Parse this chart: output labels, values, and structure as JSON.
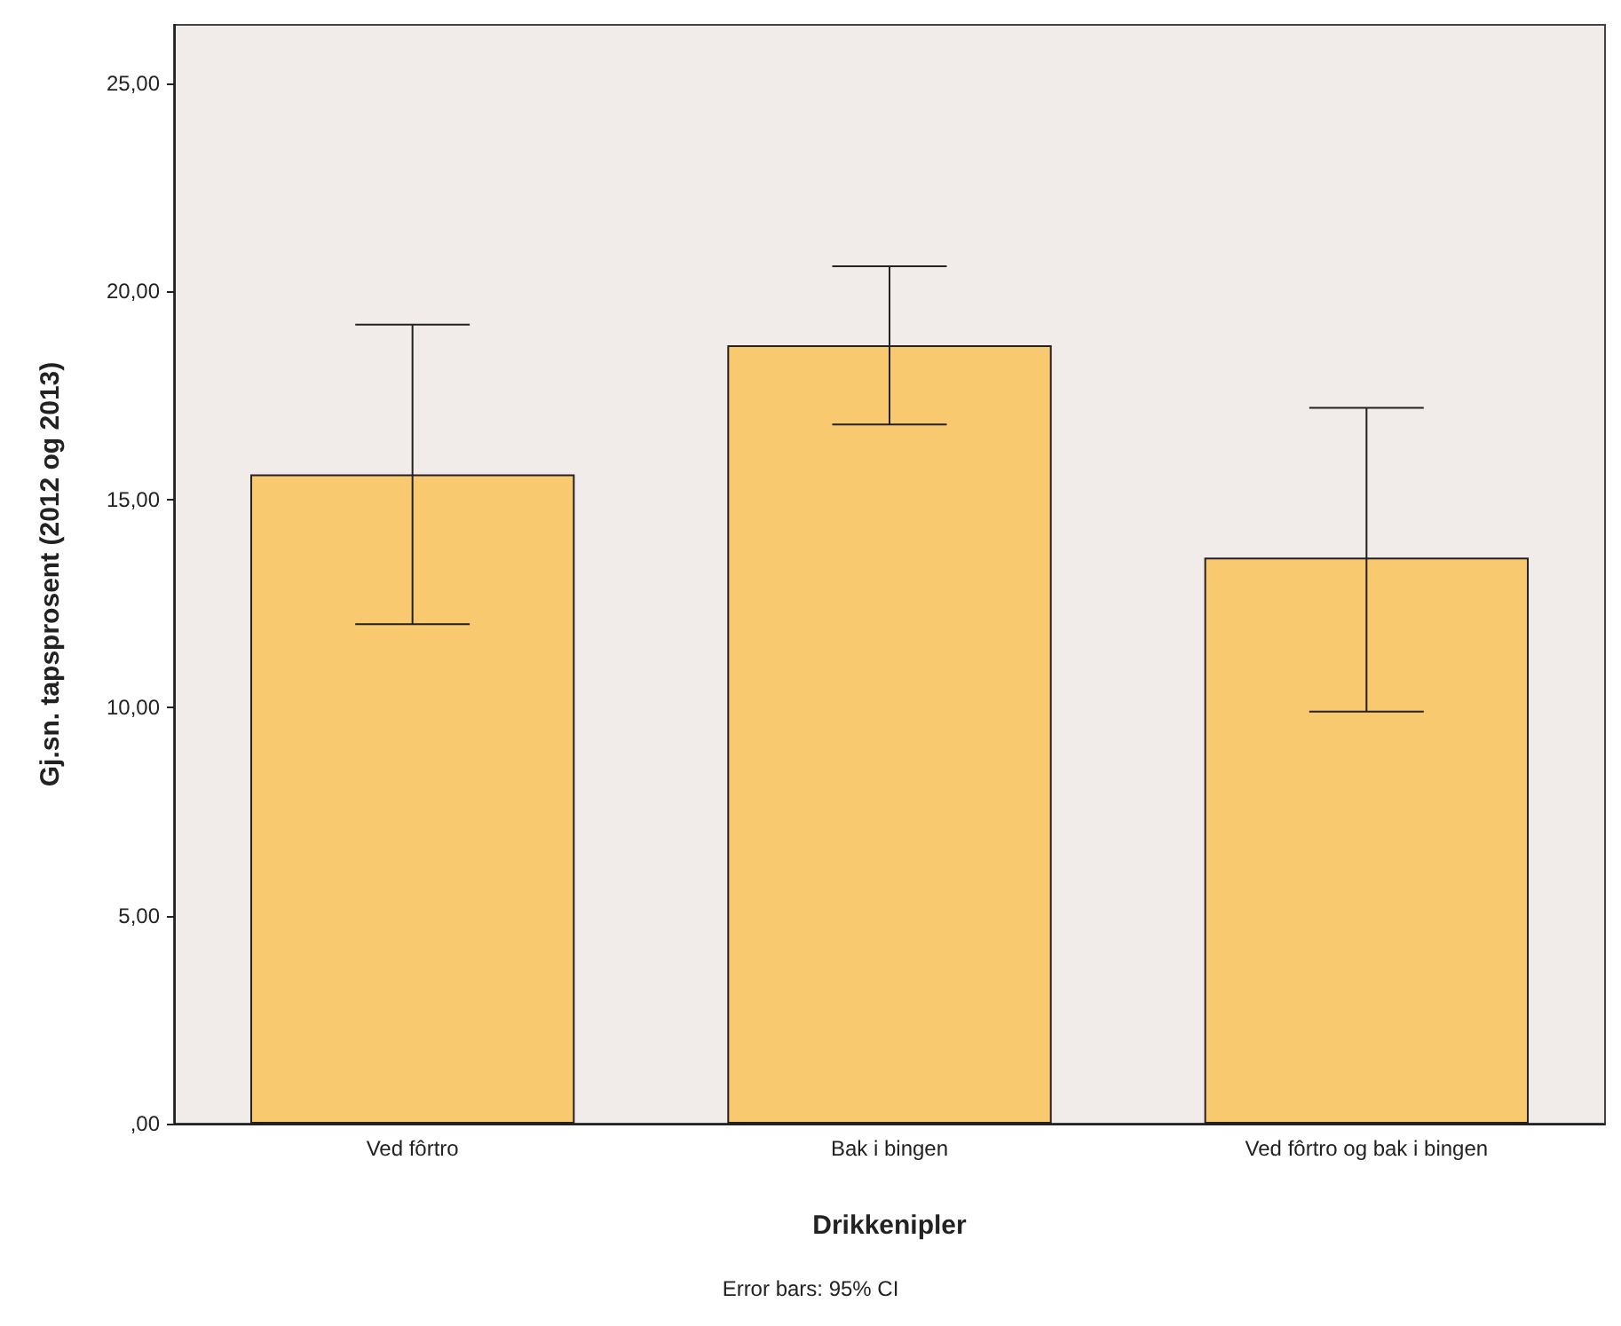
{
  "chart_data": {
    "type": "bar",
    "xlabel": "Drikkenipler",
    "ylabel": "Gj.sn. tapsprosent (2012 og 2013)",
    "categories": [
      "Ved fôrtro",
      "Bak i bingen",
      "Ved fôrtro og bak i bingen"
    ],
    "values": [
      15.6,
      18.7,
      13.6
    ],
    "errors": [
      [
        12.0,
        19.2
      ],
      [
        16.8,
        20.6
      ],
      [
        9.9,
        17.2
      ]
    ],
    "color": "#f9c970",
    "ylim": [
      0,
      26.4
    ],
    "yticks": [
      {
        "value": 0,
        "label": ",00"
      },
      {
        "value": 5,
        "label": "5,00"
      },
      {
        "value": 10,
        "label": "10,00"
      },
      {
        "value": 15,
        "label": "15,00"
      },
      {
        "value": 20,
        "label": "20,00"
      },
      {
        "value": 25,
        "label": "25,00"
      }
    ],
    "grid": false,
    "annotations": [
      "Error bars: 95% CI"
    ]
  }
}
